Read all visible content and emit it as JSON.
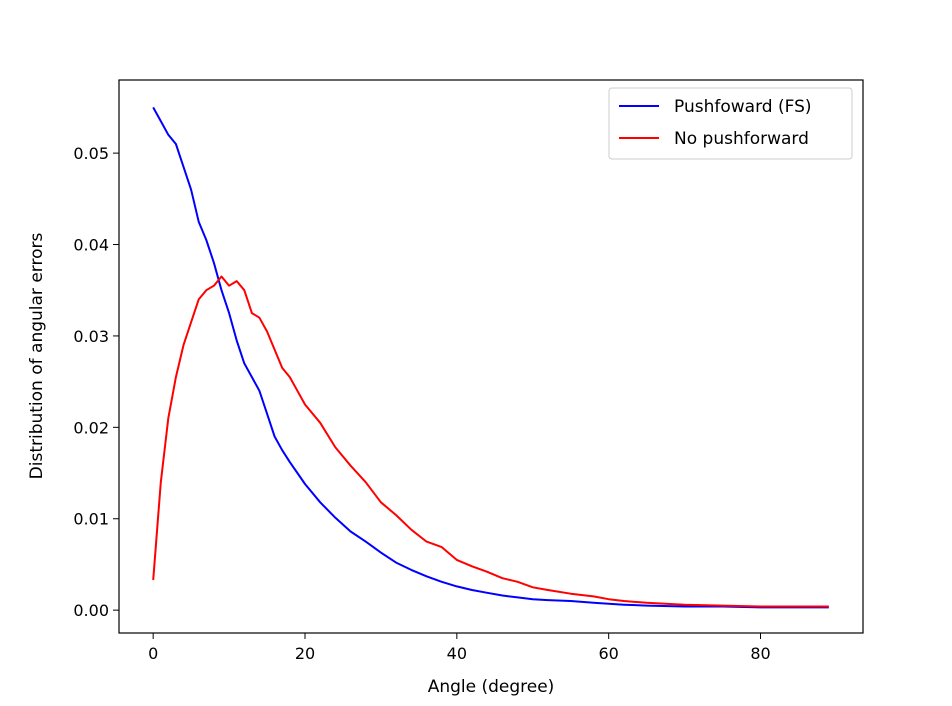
{
  "chart_data": {
    "type": "line",
    "title": "",
    "xlabel": "Angle (degree)",
    "ylabel": "Distribution of angular errors",
    "xlim": [
      -4.5,
      93.5
    ],
    "ylim": [
      -0.0025,
      0.058
    ],
    "xticks": [
      0,
      20,
      40,
      60,
      80
    ],
    "yticks": [
      0.0,
      0.01,
      0.02,
      0.03,
      0.04,
      0.05
    ],
    "xtick_labels": [
      "0",
      "20",
      "40",
      "60",
      "80"
    ],
    "ytick_labels": [
      "0.00",
      "0.01",
      "0.02",
      "0.03",
      "0.04",
      "0.05"
    ],
    "grid": false,
    "legend_position": "top-right",
    "series": [
      {
        "name": "Pushfoward (FS)",
        "color": "#0000ff",
        "x": [
          0,
          1,
          2,
          3,
          4,
          5,
          6,
          7,
          8,
          9,
          10,
          11,
          12,
          13,
          14,
          15,
          16,
          17,
          18,
          19,
          20,
          22,
          24,
          26,
          28,
          30,
          32,
          34,
          36,
          38,
          40,
          42,
          44,
          46,
          48,
          50,
          52,
          55,
          58,
          60,
          62,
          65,
          70,
          75,
          80,
          85,
          89
        ],
        "y": [
          0.055,
          0.0535,
          0.052,
          0.051,
          0.0485,
          0.046,
          0.0425,
          0.0405,
          0.038,
          0.035,
          0.0325,
          0.0295,
          0.027,
          0.0255,
          0.024,
          0.0215,
          0.019,
          0.0175,
          0.0162,
          0.015,
          0.0138,
          0.0118,
          0.0101,
          0.0086,
          0.0075,
          0.0063,
          0.0052,
          0.0044,
          0.0037,
          0.0031,
          0.0026,
          0.0022,
          0.0019,
          0.0016,
          0.0014,
          0.0012,
          0.0011,
          0.001,
          0.0008,
          0.0007,
          0.0006,
          0.0005,
          0.0004,
          0.0004,
          0.0003,
          0.0003,
          0.0003
        ]
      },
      {
        "name": "No pushforward",
        "color": "#ff0000",
        "x": [
          0,
          1,
          2,
          3,
          4,
          5,
          6,
          7,
          8,
          9,
          10,
          11,
          12,
          13,
          14,
          15,
          16,
          17,
          18,
          19,
          20,
          22,
          24,
          26,
          28,
          30,
          32,
          34,
          36,
          38,
          40,
          42,
          44,
          46,
          48,
          50,
          52,
          55,
          58,
          60,
          62,
          65,
          70,
          75,
          80,
          85,
          89
        ],
        "y": [
          0.0033,
          0.014,
          0.021,
          0.0255,
          0.029,
          0.0315,
          0.034,
          0.035,
          0.0355,
          0.0365,
          0.0355,
          0.036,
          0.035,
          0.0325,
          0.032,
          0.0305,
          0.0285,
          0.0265,
          0.0255,
          0.024,
          0.0225,
          0.0205,
          0.0178,
          0.0158,
          0.014,
          0.0118,
          0.0104,
          0.0088,
          0.0075,
          0.0069,
          0.0055,
          0.0048,
          0.0042,
          0.0035,
          0.0031,
          0.0025,
          0.0022,
          0.0018,
          0.0015,
          0.0012,
          0.001,
          0.0008,
          0.0006,
          0.0005,
          0.0004,
          0.0004,
          0.0004
        ]
      }
    ]
  }
}
